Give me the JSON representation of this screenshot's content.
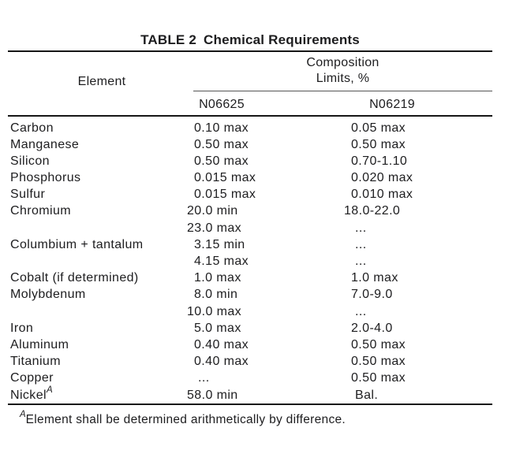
{
  "title": {
    "label": "TABLE 2",
    "text": "Chemical Requirements"
  },
  "table": {
    "element_header": "Element",
    "col_group_header": {
      "line1": "Composition",
      "line2": "Limits, %"
    },
    "columns": [
      "N06625",
      "N06219"
    ],
    "rows": [
      {
        "element": "Carbon",
        "element_sup": "",
        "n06625": "0.10 max",
        "n06219": "0.05 max"
      },
      {
        "element": "Manganese",
        "element_sup": "",
        "n06625": "0.50 max",
        "n06219": "0.50 max"
      },
      {
        "element": "Silicon",
        "element_sup": "",
        "n06625": "0.50 max",
        "n06219": "0.70-1.10"
      },
      {
        "element": "Phosphorus",
        "element_sup": "",
        "n06625": "0.015 max",
        "n06219": "0.020 max"
      },
      {
        "element": "Sulfur",
        "element_sup": "",
        "n06625": "0.015 max",
        "n06219": "0.010 max"
      },
      {
        "element": "Chromium",
        "element_sup": "",
        "n06625": "20.0 min",
        "n06219": "18.0-22.0"
      },
      {
        "element": "",
        "element_sup": "",
        "n06625": "23.0 max",
        "n06219": "..."
      },
      {
        "element": "Columbium + tantalum",
        "element_sup": "",
        "n06625": "3.15 min",
        "n06219": "..."
      },
      {
        "element": "",
        "element_sup": "",
        "n06625": "4.15 max",
        "n06219": "..."
      },
      {
        "element": "Cobalt (if determined)",
        "element_sup": "",
        "n06625": "1.0 max",
        "n06219": "1.0 max"
      },
      {
        "element": "Molybdenum",
        "element_sup": "",
        "n06625": "8.0 min",
        "n06219": "7.0-9.0"
      },
      {
        "element": "",
        "element_sup": "",
        "n06625": "10.0 max",
        "n06219": "..."
      },
      {
        "element": "Iron",
        "element_sup": "",
        "n06625": "5.0 max",
        "n06219": "2.0-4.0"
      },
      {
        "element": "Aluminum",
        "element_sup": "",
        "n06625": "0.40 max",
        "n06219": "0.50 max"
      },
      {
        "element": "Titanium",
        "element_sup": "",
        "n06625": "0.40 max",
        "n06219": "0.50 max"
      },
      {
        "element": "Copper",
        "element_sup": "",
        "n06625": "...",
        "n06219": "0.50 max"
      },
      {
        "element": "Nickel",
        "element_sup": "A",
        "n06625": "58.0 min",
        "n06219": "Bal."
      }
    ],
    "footnote": {
      "sup": "A",
      "text": "Element shall be determined arithmetically by difference."
    }
  }
}
